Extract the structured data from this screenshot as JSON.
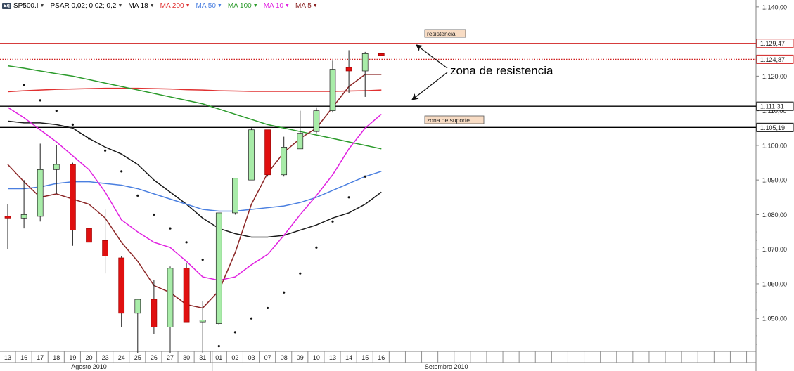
{
  "legend": {
    "symbol_badge": "Eq",
    "items": [
      {
        "label": "SP500.I",
        "color": "#000000"
      },
      {
        "label": "PSAR 0,02; 0,02; 0,2",
        "color": "#000000"
      },
      {
        "label": "MA 18",
        "color": "#000000"
      },
      {
        "label": "MA 200",
        "color": "#e03030"
      },
      {
        "label": "MA 50",
        "color": "#4a7fe0"
      },
      {
        "label": "MA 100",
        "color": "#2a9a2a"
      },
      {
        "label": "MA 10",
        "color": "#e020e0"
      },
      {
        "label": "MA 5",
        "color": "#8a2a2a"
      }
    ]
  },
  "chart_data": {
    "type": "candlestick",
    "symbol": "SP500.I",
    "y_ticks": [
      1050,
      1060,
      1070,
      1080,
      1090,
      1100,
      1110,
      1120,
      1130,
      1140
    ],
    "y_tick_labels": [
      "1.050,00",
      "1.060,00",
      "1.070,00",
      "1.080,00",
      "1.090,00",
      "1.100,00",
      "1.110,00",
      "1.120,00",
      "1.130,00",
      "1.140,00"
    ],
    "ylim": [
      1040.5,
      1142
    ],
    "x_labels": [
      "13",
      "16",
      "17",
      "18",
      "19",
      "20",
      "23",
      "24",
      "25",
      "26",
      "27",
      "30",
      "31",
      "01",
      "02",
      "03",
      "07",
      "08",
      "09",
      "10",
      "13",
      "14",
      "15",
      "16"
    ],
    "month_labels": [
      {
        "label": "Agosto 2010",
        "slot": 5
      },
      {
        "label": "Setembro 2010",
        "slot": 27
      }
    ],
    "month_divider_slot": 12.5,
    "candles": [
      {
        "open": 1079.5,
        "high": 1083,
        "low": 1070,
        "close": 1079.0
      },
      {
        "open": 1079,
        "high": 1090,
        "low": 1076,
        "close": 1080
      },
      {
        "open": 1079.5,
        "high": 1100.5,
        "low": 1078,
        "close": 1093
      },
      {
        "open": 1093,
        "high": 1100,
        "low": 1086,
        "close": 1094.5
      },
      {
        "open": 1094.5,
        "high": 1095,
        "low": 1071,
        "close": 1075.5
      },
      {
        "open": 1076,
        "high": 1076.5,
        "low": 1064,
        "close": 1072
      },
      {
        "open": 1072.5,
        "high": 1081.5,
        "low": 1063,
        "close": 1068
      },
      {
        "open": 1067.5,
        "high": 1068,
        "low": 1047.5,
        "close": 1051.5
      },
      {
        "open": 1051.5,
        "high": 1055.5,
        "low": 1040,
        "close": 1055.5
      },
      {
        "open": 1055.5,
        "high": 1061,
        "low": 1045.5,
        "close": 1047.5
      },
      {
        "open": 1047.5,
        "high": 1065,
        "low": 1040,
        "close": 1064.5
      },
      {
        "open": 1064.5,
        "high": 1066,
        "low": 1049,
        "close": 1049
      },
      {
        "open": 1049,
        "high": 1055,
        "low": 1040,
        "close": 1049.5
      },
      {
        "open": 1048.5,
        "high": 1080.5,
        "low": 1048,
        "close": 1080.5
      },
      {
        "open": 1080.5,
        "high": 1090.5,
        "low": 1080,
        "close": 1090.5
      },
      {
        "open": 1090,
        "high": 1105,
        "low": 1090,
        "close": 1104.5
      },
      {
        "open": 1104.5,
        "high": 1104.5,
        "low": 1091,
        "close": 1091.5
      },
      {
        "open": 1091.5,
        "high": 1102.5,
        "low": 1091,
        "close": 1099.5
      },
      {
        "open": 1099,
        "high": 1110,
        "low": 1099,
        "close": 1103.5
      },
      {
        "open": 1104,
        "high": 1111,
        "low": 1103.5,
        "close": 1110
      },
      {
        "open": 1110,
        "high": 1124.5,
        "low": 1109.5,
        "close": 1122
      },
      {
        "open": 1122.5,
        "high": 1127.5,
        "low": 1115,
        "close": 1121.5
      },
      {
        "open": 1121.5,
        "high": 1127,
        "low": 1114,
        "close": 1126.5
      },
      {
        "open": 1126.5,
        "high": 1126.5,
        "low": 1126.0,
        "close": 1126.0
      }
    ],
    "psar": [
      null,
      1117.5,
      1113,
      1110,
      1106,
      1102,
      1098.5,
      1092.5,
      1085.5,
      1080,
      1076,
      1072,
      1067,
      1042,
      1046,
      1050,
      1053,
      1057.5,
      1063,
      1070.5,
      1078,
      1085,
      1091,
      null
    ],
    "series": [
      {
        "name": "MA 18",
        "color": "#1a1a1a",
        "values": [
          1107,
          1106.5,
          1106.5,
          1106,
          1105,
          1102,
          1099.5,
          1097.5,
          1094.5,
          1090,
          1086.5,
          1083,
          1079,
          1076,
          1074.5,
          1073.5,
          1073.5,
          1074,
          1075.5,
          1077,
          1079,
          1080.5,
          1083,
          1086.5
        ]
      },
      {
        "name": "MA 200",
        "color": "#e03030",
        "values": [
          1115.5,
          1115.8,
          1116,
          1116.2,
          1116.3,
          1116.4,
          1116.5,
          1116.5,
          1116.5,
          1116.4,
          1116.3,
          1116.1,
          1116,
          1115.8,
          1115.7,
          1115.6,
          1115.6,
          1115.6,
          1115.6,
          1115.6,
          1115.6,
          1115.7,
          1115.8,
          1116
        ]
      },
      {
        "name": "MA 50",
        "color": "#4a7fe0",
        "values": [
          1087.5,
          1087.5,
          1088,
          1089,
          1089.5,
          1089.5,
          1089,
          1088.5,
          1087.5,
          1086,
          1084.5,
          1083,
          1081.5,
          1081,
          1081,
          1081.5,
          1082,
          1082.5,
          1083.5,
          1085,
          1087,
          1089,
          1091,
          1092.5
        ]
      },
      {
        "name": "MA 100",
        "color": "#2a9a2a",
        "values": [
          1123,
          1122.3,
          1121.5,
          1120.7,
          1120,
          1119,
          1118,
          1117,
          1116,
          1115,
          1114,
          1113,
          1112,
          1110.5,
          1109,
          1107.5,
          1106,
          1105,
          1104,
          1103,
          1102,
          1101,
          1100,
          1099
        ]
      },
      {
        "name": "MA 10",
        "color": "#e020e0",
        "values": [
          1111,
          1108,
          1104.5,
          1101,
          1097,
          1093,
          1086.5,
          1078.5,
          1075,
          1072,
          1070.5,
          1066.5,
          1062,
          1061,
          1062,
          1065.5,
          1068.5,
          1074,
          1080,
          1085.5,
          1091.5,
          1099,
          1105,
          1109
        ]
      },
      {
        "name": "MA 5",
        "color": "#8b2525",
        "values": [
          1094.5,
          1089.5,
          1085,
          1086,
          1084.5,
          1083,
          1079,
          1072,
          1066.5,
          1059.5,
          1057.5,
          1054,
          1053,
          1058,
          1069,
          1083,
          1092,
          1098,
          1102,
          1105,
          1111,
          1117,
          1120.5,
          1120.5
        ]
      }
    ],
    "horizontal_lines": [
      {
        "value": 1129.47,
        "color": "#d02020",
        "style": "solid",
        "label": "1.129,47"
      },
      {
        "value": 1124.87,
        "color": "#d02020",
        "style": "dotted",
        "label": "1.124,87"
      },
      {
        "value": 1111.31,
        "color": "#000000",
        "style": "solid",
        "label": "1.111,31"
      },
      {
        "value": 1105.19,
        "color": "#000000",
        "style": "solid",
        "label": "1.105,19"
      }
    ],
    "annotations": [
      {
        "text": "resistencia",
        "type": "box"
      },
      {
        "text": "zona de suporte",
        "type": "box"
      },
      {
        "text": "zona de resistencia",
        "type": "text"
      }
    ]
  }
}
